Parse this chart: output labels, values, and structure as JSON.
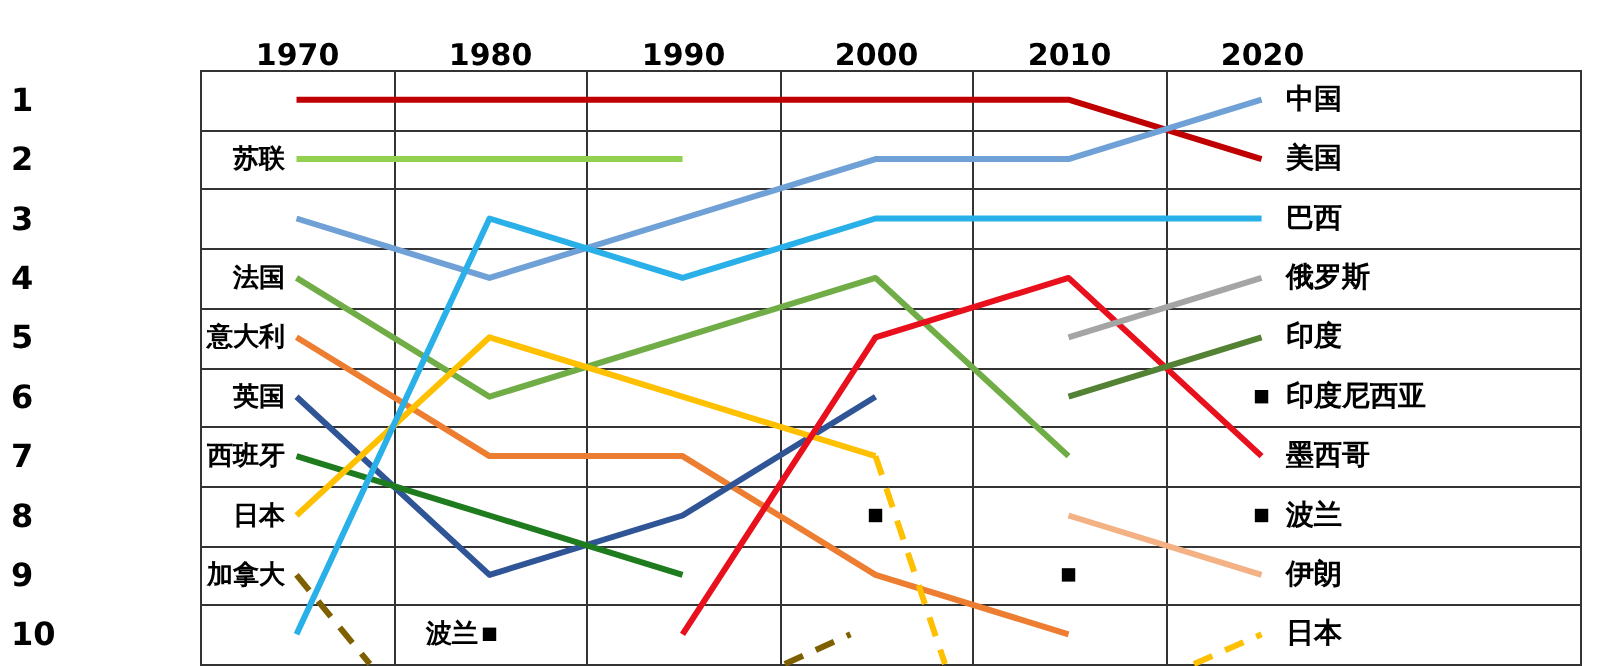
{
  "chart_data": {
    "type": "line",
    "x": [
      1970,
      1980,
      1990,
      2000,
      2010,
      2020
    ],
    "xlim": [
      1965,
      2036.5
    ],
    "ylim": [
      10.5,
      0.5
    ],
    "xticks": [
      {
        "value": 1965,
        "label": null
      },
      1970,
      {
        "value": 1975,
        "label": null
      },
      1980,
      {
        "value": 1985,
        "label": null
      },
      1990,
      {
        "value": 1995,
        "label": null
      },
      2000,
      {
        "value": 2005,
        "label": null
      },
      2010,
      {
        "value": 2015,
        "label": null
      },
      2020
    ],
    "yticks": [
      {
        "value": 0.5,
        "label": null
      },
      1,
      {
        "value": 1.5,
        "label": null
      },
      2,
      {
        "value": 2.5,
        "label": null
      },
      3,
      {
        "value": 3.5,
        "label": null
      },
      4,
      {
        "value": 4.5,
        "label": null
      },
      5,
      {
        "value": 5.5,
        "label": null
      },
      6,
      {
        "value": 6.5,
        "label": null
      },
      7,
      {
        "value": 7.5,
        "label": null
      },
      8,
      {
        "value": 8.5,
        "label": null
      },
      9,
      {
        "value": 9.5,
        "label": null
      },
      10,
      {
        "value": 10.5,
        "label": null
      }
    ],
    "grid": true,
    "series": [
      {
        "name": "美国",
        "color": "#c00000",
        "values": [
          1,
          1,
          1,
          1,
          1,
          2
        ]
      },
      {
        "name": "苏联",
        "color": "#92d050",
        "values": [
          2,
          2,
          2,
          null,
          null,
          null
        ]
      },
      {
        "name": "中国",
        "color": "#6fa0d6",
        "values": [
          3,
          4,
          3,
          2,
          2,
          1
        ]
      },
      {
        "name": "法国",
        "color": "#70ad47",
        "values": [
          4,
          6,
          5,
          4,
          7,
          null
        ]
      },
      {
        "name": "意大利",
        "color": "#ed7d31",
        "values": [
          5,
          7,
          7,
          9,
          10,
          null
        ]
      },
      {
        "name": "英国",
        "color": "#2f5597",
        "values": [
          6,
          9,
          8,
          6,
          null,
          null
        ]
      },
      {
        "name": "西班牙",
        "color": "#1e7b1e",
        "values": [
          7,
          8,
          9,
          null,
          null,
          null
        ]
      },
      {
        "name": "日本",
        "color": "#ffc000",
        "values": [
          8,
          5,
          6,
          7,
          null,
          null
        ]
      },
      {
        "name": "加拿大",
        "color": "#7f6000",
        "line_style": "dashed",
        "x": [
          1970,
          1973.8
        ],
        "values": [
          9,
          10.5
        ]
      },
      {
        "color": "#ffc000",
        "line_style": "dashed",
        "x": [
          2000,
          2003.6
        ],
        "values": [
          7,
          10.5
        ]
      },
      {
        "color": "#7f6000",
        "line_style": "dashed",
        "x": [
          1995.3,
          1998.7
        ],
        "values": [
          10.5,
          10
        ]
      },
      {
        "name": "巴西",
        "color": "#2ab0e8",
        "values": [
          10,
          3,
          4,
          3,
          3,
          3
        ]
      },
      {
        "name": "墨西哥",
        "color": "#e8101c",
        "values": [
          null,
          null,
          10,
          5,
          4,
          7
        ]
      },
      {
        "name": "俄罗斯",
        "color": "#a5a5a5",
        "values": [
          null,
          null,
          null,
          null,
          5,
          4
        ]
      },
      {
        "name": "印度",
        "color": "#548235",
        "values": [
          null,
          null,
          null,
          null,
          6,
          5
        ]
      },
      {
        "name": "伊朗",
        "color": "#f4b183",
        "values": [
          null,
          null,
          null,
          null,
          8,
          9
        ]
      },
      {
        "name": "日本",
        "color": "#ffc000",
        "line_style": "dashed",
        "x": [
          2016.5,
          2020
        ],
        "values": [
          10.5,
          10
        ]
      },
      {
        "name": "波兰",
        "type": "scatter",
        "marker": "square",
        "color": "#000000",
        "x": [
          1980
        ],
        "values": [
          10
        ]
      },
      {
        "name": "波兰",
        "type": "scatter",
        "marker": "square",
        "color": "#000000",
        "x": [
          2000,
          2010,
          2020
        ],
        "values": [
          8,
          9,
          8
        ]
      },
      {
        "name": "印度尼西亚",
        "type": "scatter",
        "marker": "square",
        "color": "#000000",
        "x": [
          2020
        ],
        "values": [
          6
        ]
      }
    ]
  }
}
